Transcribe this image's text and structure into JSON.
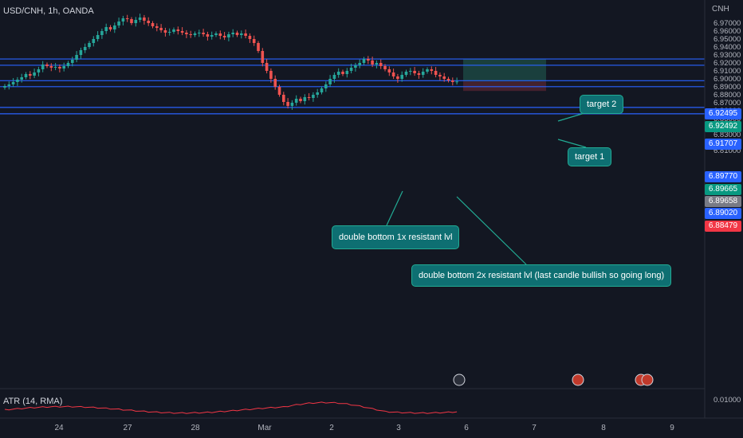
{
  "header": {
    "symbol": "USD/CNH, 1h, OANDA",
    "currency": "CNH"
  },
  "indicator": {
    "label": "ATR (14, RMA)"
  },
  "colors": {
    "background": "#131722",
    "up": "#26a69a",
    "down": "#ef5350",
    "line": "#2962ff",
    "callout": "#0e6f72",
    "target_zone": "#1d4a45",
    "stop_zone": "#4a2230",
    "atr": "#f23645"
  },
  "chart_data": {
    "type": "candlestick",
    "title": "USD/CNH, 1h, OANDA",
    "ylim": [
      6.8,
      6.97
    ],
    "y_ticks": [
      "6.97000",
      "6.96000",
      "6.95000",
      "6.94000",
      "6.93000",
      "6.92000",
      "6.91000",
      "6.90000",
      "6.89000",
      "6.88000",
      "6.87000",
      "6.86000",
      "6.85000",
      "6.84000",
      "6.83000",
      "6.82000",
      "6.81000"
    ],
    "x_ticks": [
      "24",
      "27",
      "28",
      "Mar",
      "2",
      "3",
      "6",
      "7",
      "8",
      "9"
    ],
    "horizontal_lines": [
      6.92495,
      6.91707,
      6.8977,
      6.8902,
      6.86411,
      6.8561
    ],
    "price_tags": [
      {
        "value": "6.92495",
        "color": "#2962ff"
      },
      {
        "value": "6.92492",
        "color": "#089981"
      },
      {
        "value": "6.91707",
        "color": "#2962ff"
      },
      {
        "value": "6.89770",
        "color": "#2962ff"
      },
      {
        "value": "6.89665",
        "color": "#089981"
      },
      {
        "value": "6.89658",
        "color": "#787b86"
      },
      {
        "value": "6.89020",
        "color": "#2962ff"
      },
      {
        "value": "6.88479",
        "color": "#f23645"
      }
    ],
    "position": {
      "entry": 6.8967,
      "target": 6.9249,
      "stop": 6.8848
    },
    "candles_close": [
      6.891,
      6.893,
      6.896,
      6.899,
      6.902,
      6.906,
      6.904,
      6.908,
      6.912,
      6.918,
      6.916,
      6.914,
      6.915,
      6.913,
      6.916,
      6.92,
      6.924,
      6.93,
      6.936,
      6.94,
      6.945,
      6.95,
      6.955,
      6.96,
      6.965,
      6.962,
      6.967,
      6.972,
      6.976,
      6.975,
      6.97,
      6.974,
      6.977,
      6.973,
      6.97,
      6.966,
      6.964,
      6.961,
      6.958,
      6.959,
      6.962,
      6.96,
      6.958,
      6.956,
      6.955,
      6.957,
      6.958,
      6.956,
      6.953,
      6.955,
      6.957,
      6.954,
      6.952,
      6.956,
      6.958,
      6.955,
      6.957,
      6.954,
      6.95,
      6.945,
      6.935,
      6.92,
      6.91,
      6.9,
      6.89,
      6.88,
      6.871,
      6.866,
      6.87,
      6.875,
      6.872,
      6.877,
      6.876,
      6.88,
      6.883,
      6.888,
      6.893,
      6.9,
      6.905,
      6.909,
      6.906,
      6.91,
      6.914,
      6.917,
      6.92,
      6.925,
      6.923,
      6.918,
      6.92,
      6.916,
      6.912,
      6.908,
      6.903,
      6.9,
      6.905,
      6.909,
      6.91,
      6.907,
      6.905,
      6.909,
      6.912,
      6.91,
      6.905,
      6.903,
      6.9,
      6.898,
      6.896,
      6.8967
    ],
    "atr": {
      "label": "ATR (14, RMA)",
      "value": "0.01000"
    },
    "annotations": [
      "target 2",
      "target 1",
      "double bottom 1x resistant lvl",
      "double bottom 2x resistant lvl (last candle bullish so going long)"
    ]
  }
}
